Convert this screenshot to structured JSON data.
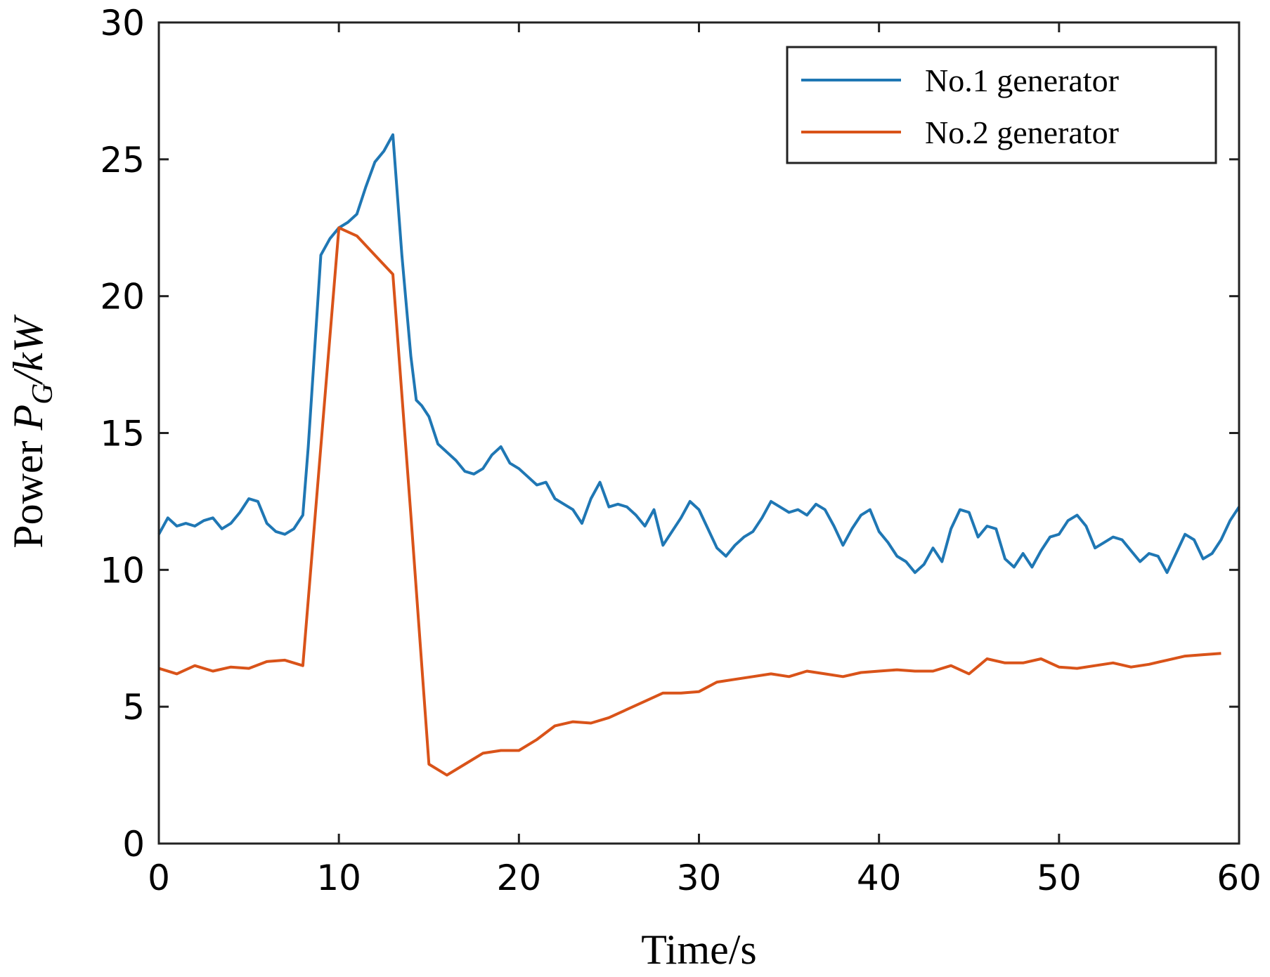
{
  "chart_data": {
    "type": "line",
    "title": "",
    "xlabel": "Time/s",
    "ylabel": {
      "prefix": "Power ",
      "symbol": "P",
      "subscript": "G",
      "suffix": "/kW"
    },
    "xlim": [
      0,
      60
    ],
    "ylim": [
      0,
      30
    ],
    "xticks": [
      0,
      10,
      20,
      30,
      40,
      50,
      60
    ],
    "yticks": [
      0,
      5,
      10,
      15,
      20,
      25,
      30
    ],
    "grid": false,
    "legend_position": "top-right",
    "series": [
      {
        "name": "No.1 generator",
        "color": "#1f77b4",
        "x": [
          0,
          0.5,
          1,
          1.5,
          2,
          2.5,
          3,
          3.5,
          4,
          4.5,
          5,
          5.5,
          6,
          6.5,
          7,
          7.5,
          8,
          8.3,
          8.6,
          9,
          9.5,
          10,
          10.5,
          11,
          11.5,
          12,
          12.5,
          13,
          13.5,
          14,
          14.3,
          14.6,
          15,
          15.5,
          16,
          16.5,
          17,
          17.5,
          18,
          18.5,
          19,
          19.5,
          20,
          20.5,
          21,
          21.5,
          22,
          22.5,
          23,
          23.5,
          24,
          24.5,
          25,
          25.5,
          26,
          26.5,
          27,
          27.5,
          28,
          28.5,
          29,
          29.5,
          30,
          30.5,
          31,
          31.5,
          32,
          32.5,
          33,
          33.5,
          34,
          34.5,
          35,
          35.5,
          36,
          36.5,
          37,
          37.5,
          38,
          38.5,
          39,
          39.5,
          40,
          40.5,
          41,
          41.5,
          42,
          42.5,
          43,
          43.5,
          44,
          44.5,
          45,
          45.5,
          46,
          46.5,
          47,
          47.5,
          48,
          48.5,
          49,
          49.5,
          50,
          50.5,
          51,
          51.5,
          52,
          52.5,
          53,
          53.5,
          54,
          54.5,
          55,
          55.5,
          56,
          56.5,
          57,
          57.5,
          58,
          58.5,
          59,
          59.5,
          60
        ],
        "values": [
          11.3,
          11.9,
          11.6,
          11.7,
          11.6,
          11.8,
          11.9,
          11.5,
          11.7,
          12.1,
          12.6,
          12.5,
          11.7,
          11.4,
          11.3,
          11.5,
          12.0,
          14.5,
          17.5,
          21.5,
          22.1,
          22.5,
          22.7,
          23.0,
          24.0,
          24.9,
          25.3,
          25.9,
          21.5,
          17.8,
          16.2,
          16.0,
          15.6,
          14.6,
          14.3,
          14.0,
          13.6,
          13.5,
          13.7,
          14.2,
          14.5,
          13.9,
          13.7,
          13.4,
          13.1,
          13.2,
          12.6,
          12.4,
          12.2,
          11.7,
          12.6,
          13.2,
          12.3,
          12.4,
          12.3,
          12.0,
          11.6,
          12.2,
          10.9,
          11.4,
          11.9,
          12.5,
          12.2,
          11.5,
          10.8,
          10.5,
          10.9,
          11.2,
          11.4,
          11.9,
          12.5,
          12.3,
          12.1,
          12.2,
          12.0,
          12.4,
          12.2,
          11.6,
          10.9,
          11.5,
          12.0,
          12.2,
          11.4,
          11.0,
          10.5,
          10.3,
          9.9,
          10.2,
          10.8,
          10.3,
          11.5,
          12.2,
          12.1,
          11.2,
          11.6,
          11.5,
          10.4,
          10.1,
          10.6,
          10.1,
          10.7,
          11.2,
          11.3,
          11.8,
          12.0,
          11.6,
          10.8,
          11.0,
          11.2,
          11.1,
          10.7,
          10.3,
          10.6,
          10.5,
          9.9,
          10.6,
          11.3,
          11.1,
          10.4,
          10.6,
          11.1,
          11.8,
          12.3
        ]
      },
      {
        "name": "No.2 generator",
        "color": "#d95319",
        "x": [
          0,
          1,
          2,
          3,
          4,
          5,
          6,
          7,
          8,
          9,
          10,
          11,
          12,
          13,
          14,
          15,
          16,
          17,
          18,
          19,
          20,
          21,
          22,
          23,
          24,
          25,
          26,
          27,
          28,
          29,
          30,
          31,
          32,
          33,
          34,
          35,
          36,
          37,
          38,
          39,
          40,
          41,
          42,
          43,
          44,
          45,
          46,
          47,
          48,
          49,
          50,
          51,
          52,
          53,
          54,
          55,
          56,
          57,
          58,
          59
        ],
        "values": [
          6.4,
          6.2,
          6.5,
          6.3,
          6.45,
          6.4,
          6.65,
          6.7,
          6.5,
          14.5,
          22.5,
          22.2,
          21.5,
          20.8,
          12.0,
          2.9,
          2.5,
          2.9,
          3.3,
          3.4,
          3.4,
          3.8,
          4.3,
          4.45,
          4.4,
          4.6,
          4.9,
          5.2,
          5.5,
          5.5,
          5.55,
          5.9,
          6.0,
          6.1,
          6.2,
          6.1,
          6.3,
          6.2,
          6.1,
          6.25,
          6.3,
          6.35,
          6.3,
          6.3,
          6.5,
          6.2,
          6.75,
          6.6,
          6.6,
          6.75,
          6.45,
          6.4,
          6.5,
          6.6,
          6.45,
          6.55,
          6.7,
          6.85,
          6.9,
          6.95
        ]
      }
    ]
  }
}
